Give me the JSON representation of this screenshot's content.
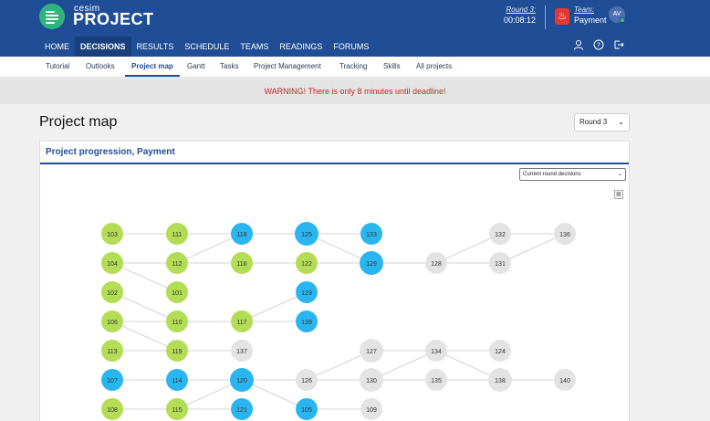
{
  "app": {
    "logo_small": "cesim",
    "logo_big": "PROJECT"
  },
  "header": {
    "round_label": "Round 3:",
    "timer": "00:08:12",
    "team_label": "Team:",
    "team_name": "Payment",
    "avatar_initials": "AV"
  },
  "main_nav": [
    "HOME",
    "DECISIONS",
    "RESULTS",
    "SCHEDULE",
    "TEAMS",
    "READINGS",
    "FORUMS"
  ],
  "sub_nav": [
    "Tutorial",
    "Outlooks",
    "Project map",
    "Gantt",
    "Tasks",
    "Project Management",
    "Tracking",
    "Skills",
    "All projects"
  ],
  "warning": "WARNING! There is only 8 minutes until deadline!",
  "page_title": "Project map",
  "round_select": "Round 3",
  "panel_title": "Project progression, Payment",
  "decisions_select": "Current round decisions",
  "colors": {
    "green": "#b2dd55",
    "blue": "#29b6f0",
    "grey": "#e3e3e3",
    "brand": "#1f4e96",
    "warning": "#c62828"
  },
  "map": {
    "nodes": [
      {
        "id": "103",
        "state": "green"
      },
      {
        "id": "104",
        "state": "green"
      },
      {
        "id": "102",
        "state": "green"
      },
      {
        "id": "106",
        "state": "green"
      },
      {
        "id": "113",
        "state": "green"
      },
      {
        "id": "107",
        "state": "blue"
      },
      {
        "id": "108",
        "state": "green"
      },
      {
        "id": "111",
        "state": "green"
      },
      {
        "id": "112",
        "state": "green"
      },
      {
        "id": "101",
        "state": "green"
      },
      {
        "id": "110",
        "state": "green"
      },
      {
        "id": "119",
        "state": "green"
      },
      {
        "id": "114",
        "state": "blue"
      },
      {
        "id": "115",
        "state": "green"
      },
      {
        "id": "118",
        "state": "blue"
      },
      {
        "id": "116",
        "state": "green"
      },
      {
        "id": "117",
        "state": "green"
      },
      {
        "id": "137",
        "state": "grey"
      },
      {
        "id": "120",
        "state": "blue"
      },
      {
        "id": "121",
        "state": "blue"
      },
      {
        "id": "125",
        "state": "blue"
      },
      {
        "id": "122",
        "state": "green"
      },
      {
        "id": "123",
        "state": "blue"
      },
      {
        "id": "139",
        "state": "blue"
      },
      {
        "id": "126",
        "state": "grey"
      },
      {
        "id": "105",
        "state": "blue"
      },
      {
        "id": "133",
        "state": "blue"
      },
      {
        "id": "129",
        "state": "blue"
      },
      {
        "id": "127",
        "state": "grey"
      },
      {
        "id": "130",
        "state": "grey"
      },
      {
        "id": "109",
        "state": "grey"
      },
      {
        "id": "128",
        "state": "grey"
      },
      {
        "id": "134",
        "state": "grey"
      },
      {
        "id": "135",
        "state": "grey"
      },
      {
        "id": "132",
        "state": "grey"
      },
      {
        "id": "131",
        "state": "grey"
      },
      {
        "id": "124",
        "state": "grey"
      },
      {
        "id": "138",
        "state": "grey"
      },
      {
        "id": "136",
        "state": "grey"
      },
      {
        "id": "140",
        "state": "grey"
      }
    ],
    "edges": [
      [
        "103",
        "111"
      ],
      [
        "104",
        "112"
      ],
      [
        "104",
        "101"
      ],
      [
        "102",
        "110"
      ],
      [
        "106",
        "110"
      ],
      [
        "106",
        "119"
      ],
      [
        "113",
        "119"
      ],
      [
        "107",
        "114"
      ],
      [
        "108",
        "115"
      ],
      [
        "111",
        "118"
      ],
      [
        "112",
        "118"
      ],
      [
        "112",
        "116"
      ],
      [
        "110",
        "117"
      ],
      [
        "119",
        "137"
      ],
      [
        "114",
        "120"
      ],
      [
        "115",
        "120"
      ],
      [
        "115",
        "121"
      ],
      [
        "118",
        "125"
      ],
      [
        "116",
        "122"
      ],
      [
        "117",
        "123"
      ],
      [
        "117",
        "139"
      ],
      [
        "120",
        "126"
      ],
      [
        "120",
        "105"
      ],
      [
        "125",
        "133"
      ],
      [
        "125",
        "129"
      ],
      [
        "122",
        "129"
      ],
      [
        "126",
        "127"
      ],
      [
        "126",
        "130"
      ],
      [
        "105",
        "109"
      ],
      [
        "129",
        "128"
      ],
      [
        "128",
        "132"
      ],
      [
        "128",
        "131"
      ],
      [
        "127",
        "134"
      ],
      [
        "130",
        "134"
      ],
      [
        "130",
        "135"
      ],
      [
        "131",
        "136"
      ],
      [
        "132",
        "136"
      ],
      [
        "134",
        "124"
      ],
      [
        "134",
        "138"
      ],
      [
        "135",
        "138"
      ],
      [
        "138",
        "140"
      ]
    ]
  }
}
